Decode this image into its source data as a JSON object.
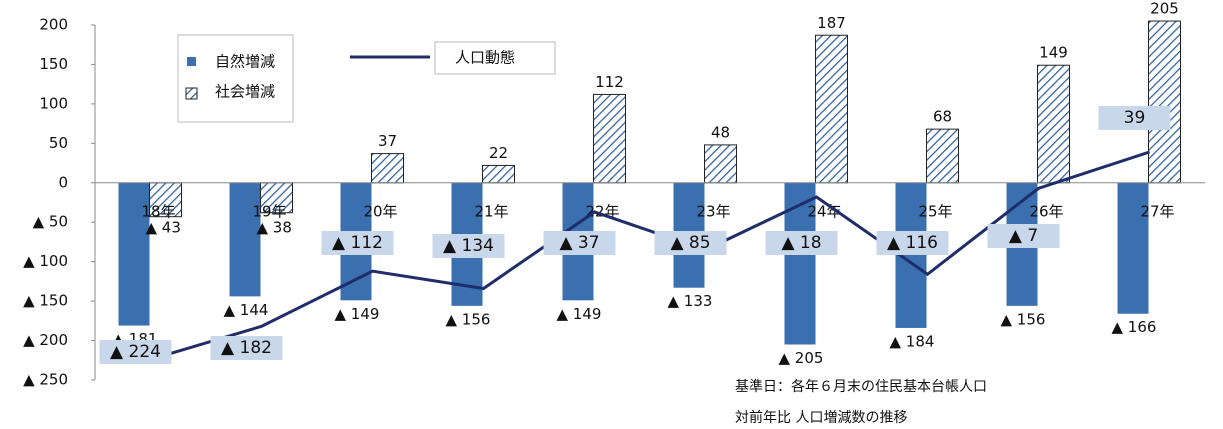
{
  "chart_data": {
    "type": "bar-line",
    "categories": [
      "18年",
      "19年",
      "20年",
      "21年",
      "22年",
      "23年",
      "24年",
      "25年",
      "26年",
      "27年"
    ],
    "series": [
      {
        "name": "自然増減",
        "type": "bar",
        "color": "#3a6fb0",
        "values": [
          -181,
          -144,
          -149,
          -156,
          -149,
          -133,
          -205,
          -184,
          -156,
          -166
        ],
        "value_labels": [
          "▲ 181",
          "▲ 144",
          "▲ 149",
          "▲ 156",
          "▲ 149",
          "▲ 133",
          "▲ 205",
          "▲ 184",
          "▲ 156",
          "▲ 166"
        ]
      },
      {
        "name": "社会増減",
        "type": "hatched-bar",
        "color": "#2e5f9e",
        "values": [
          -43,
          -38,
          37,
          22,
          112,
          48,
          187,
          68,
          149,
          205
        ],
        "value_labels": [
          "▲ 43",
          "▲ 38",
          "37",
          "22",
          "112",
          "48",
          "187",
          "68",
          "149",
          "205"
        ]
      },
      {
        "name": "人口動態",
        "type": "line",
        "color": "#1f2d6b",
        "values": [
          -224,
          -182,
          -112,
          -134,
          -37,
          -85,
          -18,
          -116,
          -7,
          39
        ],
        "value_labels": [
          "▲ 224",
          "▲ 182",
          "▲ 112",
          "▲ 134",
          "▲ 37",
          "▲ 85",
          "▲ 18",
          "▲ 116",
          "▲ 7",
          "39"
        ]
      }
    ],
    "ylim": [
      -250,
      200
    ],
    "yticks": [
      200,
      150,
      100,
      50,
      0,
      {
        "value": -50,
        "label": "▲ 50"
      },
      {
        "value": -100,
        "label": "▲ 100"
      },
      {
        "value": -150,
        "label": "▲ 150"
      },
      {
        "value": -200,
        "label": "▲ 200"
      },
      {
        "value": -250,
        "label": "▲ 250"
      }
    ],
    "annotations": [
      "基準日：各年６月末の住民基本台帳人口",
      "対前年比 人口増減数の推移"
    ]
  }
}
